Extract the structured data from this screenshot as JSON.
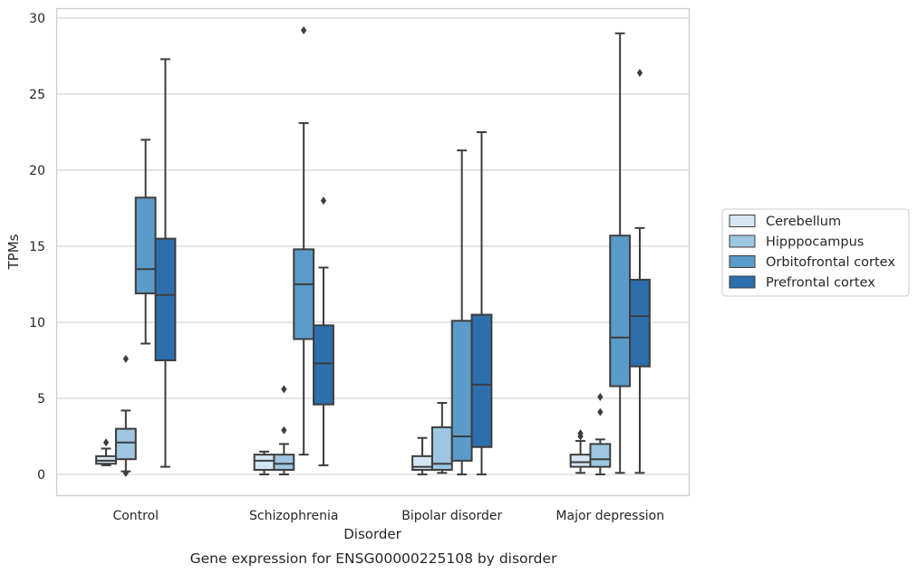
{
  "chart_data": {
    "type": "box",
    "title": "",
    "caption": "Gene expression for ENSG00000225108 by disorder",
    "xlabel": "Disorder",
    "ylabel": "TPMs",
    "ylim": [
      -1.4,
      30.6
    ],
    "yticks": [
      0,
      5,
      10,
      15,
      20,
      25,
      30
    ],
    "grid": "horizontal",
    "legend_position": "right",
    "categories": [
      "Control",
      "Schizophrenia",
      "Bipolar disorder",
      "Major depression"
    ],
    "series": [
      {
        "name": "Cerebellum",
        "color": "#d6e5f3",
        "boxes": [
          {
            "whislo": 0.6,
            "q1": 0.7,
            "med": 0.9,
            "q3": 1.2,
            "whishi": 1.7,
            "fliers": [
              2.1
            ]
          },
          {
            "whislo": 0.0,
            "q1": 0.3,
            "med": 0.9,
            "q3": 1.3,
            "whishi": 1.5,
            "fliers": []
          },
          {
            "whislo": 0.0,
            "q1": 0.3,
            "med": 0.5,
            "q3": 1.2,
            "whishi": 2.4,
            "fliers": []
          },
          {
            "whislo": 0.1,
            "q1": 0.5,
            "med": 0.8,
            "q3": 1.3,
            "whishi": 2.2,
            "fliers": [
              2.5,
              2.7
            ]
          }
        ]
      },
      {
        "name": "Hipppocampus",
        "color": "#9dc6e0",
        "boxes": [
          {
            "whislo": 0.2,
            "q1": 1.0,
            "med": 2.1,
            "q3": 3.0,
            "whishi": 4.2,
            "fliers": [
              7.6,
              0.1
            ]
          },
          {
            "whislo": 0.0,
            "q1": 0.3,
            "med": 0.7,
            "q3": 1.3,
            "whishi": 2.0,
            "fliers": [
              2.9,
              5.6
            ]
          },
          {
            "whislo": 0.1,
            "q1": 0.3,
            "med": 0.7,
            "q3": 3.1,
            "whishi": 4.7,
            "fliers": []
          },
          {
            "whislo": 0.0,
            "q1": 0.5,
            "med": 1.0,
            "q3": 2.0,
            "whishi": 2.3,
            "fliers": [
              4.1,
              5.1
            ]
          }
        ]
      },
      {
        "name": "Orbitofrontal cortex",
        "color": "#5b9bc9",
        "boxes": [
          {
            "whislo": 8.6,
            "q1": 11.9,
            "med": 13.5,
            "q3": 18.2,
            "whishi": 22.0,
            "fliers": []
          },
          {
            "whislo": 1.3,
            "q1": 8.9,
            "med": 12.5,
            "q3": 14.8,
            "whishi": 23.1,
            "fliers": [
              29.2
            ]
          },
          {
            "whislo": 0.0,
            "q1": 0.9,
            "med": 2.5,
            "q3": 10.1,
            "whishi": 21.3,
            "fliers": []
          },
          {
            "whislo": 0.1,
            "q1": 5.8,
            "med": 9.0,
            "q3": 15.7,
            "whishi": 29.0,
            "fliers": []
          }
        ]
      },
      {
        "name": "Prefrontal cortex",
        "color": "#2d6ead",
        "boxes": [
          {
            "whislo": 0.5,
            "q1": 7.5,
            "med": 11.8,
            "q3": 15.5,
            "whishi": 27.3,
            "fliers": []
          },
          {
            "whislo": 0.6,
            "q1": 4.6,
            "med": 7.3,
            "q3": 9.8,
            "whishi": 13.6,
            "fliers": [
              18.0
            ]
          },
          {
            "whislo": 0.0,
            "q1": 1.8,
            "med": 5.9,
            "q3": 10.5,
            "whishi": 22.5,
            "fliers": []
          },
          {
            "whislo": 0.1,
            "q1": 7.1,
            "med": 10.4,
            "q3": 12.8,
            "whishi": 16.2,
            "fliers": [
              26.4
            ]
          }
        ]
      }
    ]
  }
}
